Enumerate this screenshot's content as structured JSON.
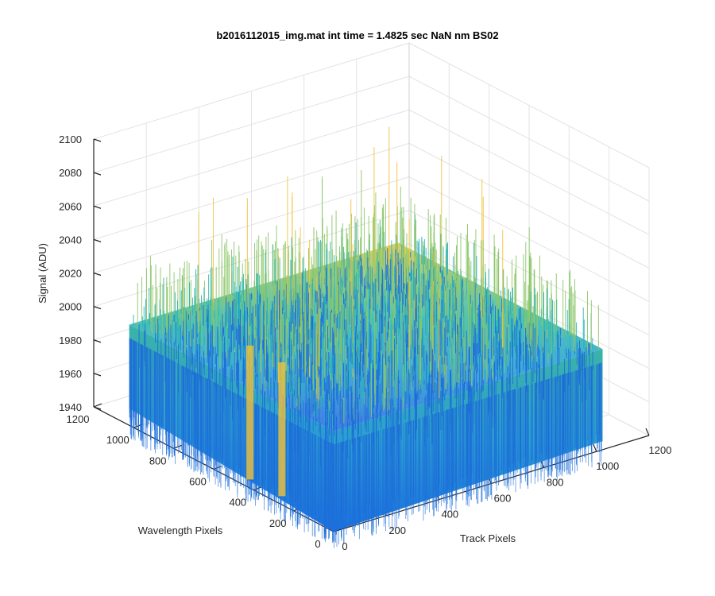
{
  "chart_data": {
    "type": "surface",
    "title": "b2016112015_img.mat int time = 1.4825 sec  NaN nm BS02",
    "xlabel": "Track Pixels",
    "ylabel": "Wavelength Pixels",
    "zlabel": "Signal (ADU)",
    "xlim": [
      0,
      1200
    ],
    "ylim": [
      0,
      1200
    ],
    "zlim": [
      1940,
      2100
    ],
    "x_ticks": [
      "0",
      "200",
      "400",
      "600",
      "800",
      "1000",
      "1200"
    ],
    "y_ticks": [
      "0",
      "200",
      "400",
      "600",
      "800",
      "1000",
      "1200"
    ],
    "z_ticks": [
      "1940",
      "1960",
      "1980",
      "2000",
      "2020",
      "2040",
      "2060",
      "2080",
      "2100"
    ],
    "grid": true,
    "colormap": "parula",
    "data_summary": {
      "x_extent": [
        1,
        1024
      ],
      "y_extent": [
        1,
        1024
      ],
      "baseline_signal": 2000,
      "noise_range": [
        1960,
        2090
      ],
      "peak_signal": 2085
    },
    "colors": {
      "low": "#1e6fd8",
      "mid": "#2bb5b8",
      "high": "#f2c23a",
      "axis": "#262626",
      "grid": "#e3e3e3"
    }
  }
}
